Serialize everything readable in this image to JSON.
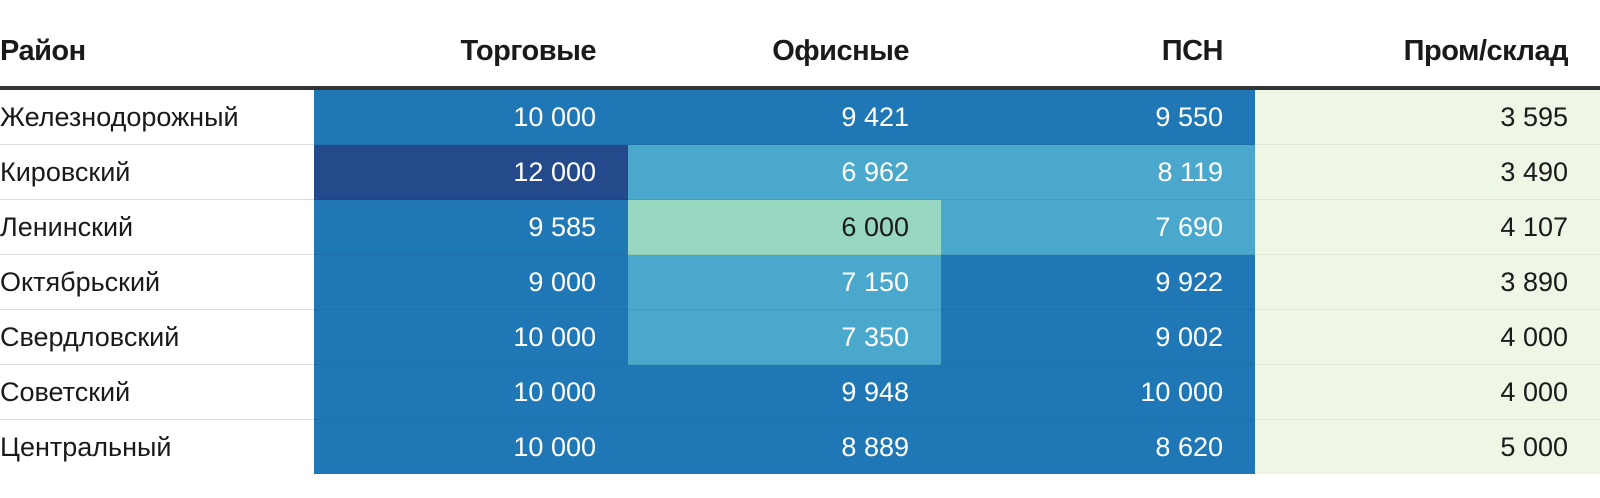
{
  "chart_data": {
    "type": "table",
    "columns": [
      "Район",
      "Торговые",
      "Офисные",
      "ПСН",
      "Пром/склад"
    ],
    "rows": [
      {
        "district": "Железнодорожный",
        "values": [
          "10 000",
          "9 421",
          "9 550",
          "3 595"
        ]
      },
      {
        "district": "Кировский",
        "values": [
          "12 000",
          "6 962",
          "8 119",
          "3 490"
        ]
      },
      {
        "district": "Ленинский",
        "values": [
          "9 585",
          "6 000",
          "7 690",
          "4 107"
        ]
      },
      {
        "district": "Октябрьский",
        "values": [
          "9 000",
          "7 150",
          "9 922",
          "3 890"
        ]
      },
      {
        "district": "Свердловский",
        "values": [
          "10 000",
          "7 350",
          "9 002",
          "4 000"
        ]
      },
      {
        "district": "Советский",
        "values": [
          "10 000",
          "9 948",
          "10 000",
          "4 000"
        ]
      },
      {
        "district": "Центральный",
        "values": [
          "10 000",
          "8 889",
          "8 620",
          "5 000"
        ]
      }
    ],
    "color_scale": [
      {
        "min": 0,
        "max": 5999,
        "bg": "#eef7e5",
        "fg": "#1a1a1a"
      },
      {
        "min": 6000,
        "max": 6500,
        "bg": "#97d6c0",
        "fg": "#1a1a1a"
      },
      {
        "min": 6500,
        "max": 8500,
        "bg": "#4aa8cc",
        "fg": "#ffffff"
      },
      {
        "min": 8500,
        "max": 11000,
        "bg": "#1f78b5",
        "fg": "#ffffff"
      },
      {
        "min": 11000,
        "max": 100000,
        "bg": "#244a8c",
        "fg": "#ffffff"
      }
    ]
  }
}
